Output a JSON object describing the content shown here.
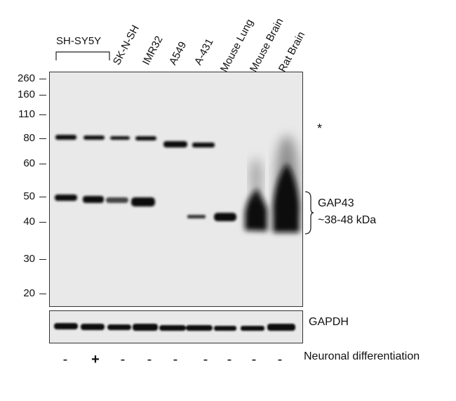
{
  "lanes": {
    "sh_sy5y": "SH-SY5Y",
    "items": [
      "SK-N-SH",
      "IMR32",
      "A549",
      "A-431",
      "Mouse Lung",
      "Mouse Brain",
      "Rat Brain"
    ]
  },
  "markers": [
    "260",
    "160",
    "110",
    "80",
    "60",
    "50",
    "40",
    "30",
    "20"
  ],
  "asterisk": "*",
  "gap43": {
    "name": "GAP43",
    "range": "~38-48 kDa"
  },
  "loading_control": "GAPDH",
  "differentiation": {
    "label": "Neuronal differentiation",
    "signs": [
      "-",
      "+",
      "-",
      "-",
      "-",
      "-",
      "-",
      "-",
      "-"
    ]
  }
}
